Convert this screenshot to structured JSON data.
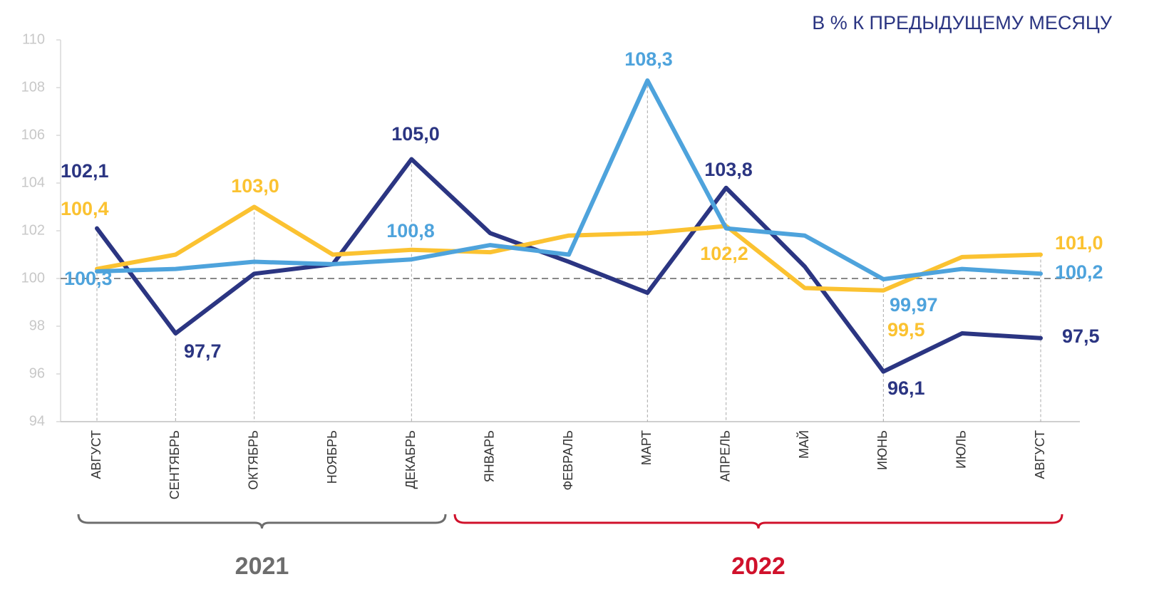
{
  "chart_data": {
    "type": "line",
    "subtitle": "В % К ПРЕДЫДУЩЕМУ МЕСЯЦУ",
    "categories": [
      "АВГУСТ",
      "СЕНТЯБРЬ",
      "ОКТЯБРЬ",
      "НОЯБРЬ",
      "ДЕКАБРЬ",
      "ЯНВАРЬ",
      "ФЕВРАЛЬ",
      "МАРТ",
      "АПРЕЛЬ",
      "МАЙ",
      "ИЮНЬ",
      "ИЮЛЬ",
      "АВГУСТ"
    ],
    "series": [
      {
        "color": "#2b3582",
        "values": [
          102.1,
          97.7,
          100.2,
          100.6,
          105.0,
          101.9,
          100.7,
          99.4,
          103.8,
          100.5,
          96.1,
          97.7,
          97.5
        ],
        "value_labels": [
          "102,1",
          "97,7",
          null,
          null,
          "105,0",
          null,
          null,
          null,
          "103,8",
          null,
          "96,1",
          null,
          "97,5"
        ]
      },
      {
        "color": "#fbc231",
        "values": [
          100.4,
          101.0,
          103.0,
          101.0,
          101.2,
          101.1,
          101.8,
          101.9,
          102.2,
          99.6,
          99.5,
          100.9,
          101.0
        ],
        "value_labels": [
          "100,4",
          null,
          "103,0",
          null,
          null,
          null,
          null,
          null,
          "102,2",
          null,
          "99,5",
          null,
          "101,0"
        ]
      },
      {
        "color": "#4ea3dc",
        "values": [
          100.3,
          100.4,
          100.7,
          100.6,
          100.8,
          101.4,
          101.0,
          108.3,
          102.1,
          101.8,
          99.97,
          100.4,
          100.2
        ],
        "value_labels": [
          "100,3",
          null,
          null,
          null,
          "100,8",
          null,
          null,
          "108,3",
          null,
          null,
          "99,97",
          null,
          "100,2"
        ]
      }
    ],
    "ylim": [
      94,
      110
    ],
    "yticks": [
      94,
      96,
      98,
      100,
      102,
      104,
      106,
      108,
      110
    ],
    "reference_line": 100,
    "groups": [
      {
        "label": "2021",
        "color": "#6d6d6d"
      },
      {
        "label": "2022",
        "color": "#d0112b"
      }
    ]
  }
}
